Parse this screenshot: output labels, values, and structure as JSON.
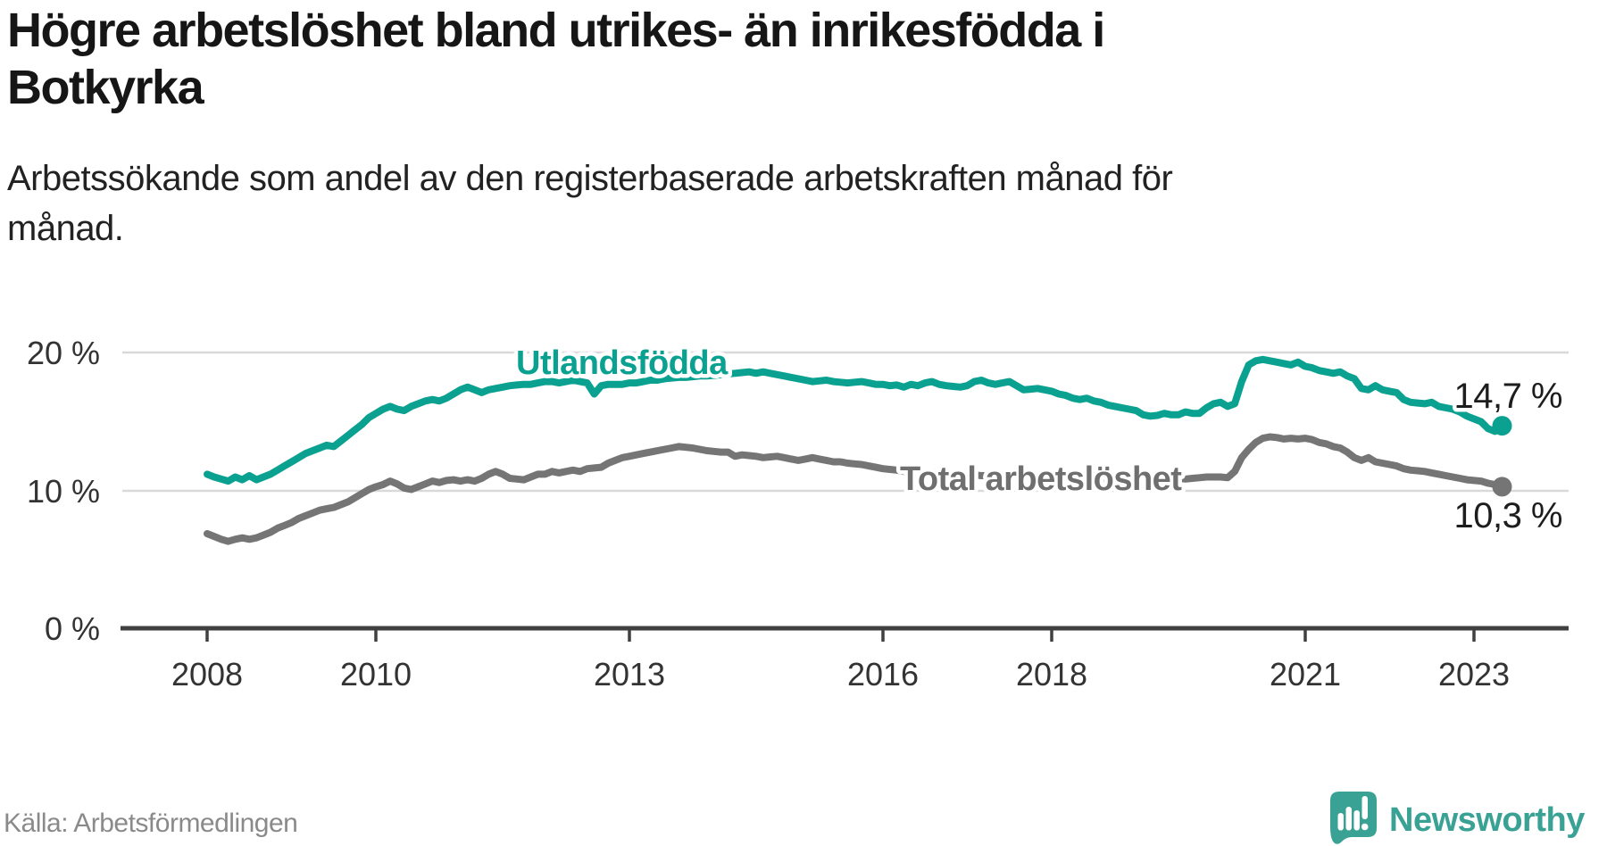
{
  "title": {
    "line1": "Högre arbetslöshet bland utrikes- än inrikesfödda i",
    "line2": "Botkyrka"
  },
  "subtitle": {
    "line1": "Arbetssökande som andel av den registerbaserade arbetskraften månad för",
    "line2": "månad."
  },
  "source": "Källa: Arbetsförmedlingen",
  "brand": {
    "name": "Newsworthy"
  },
  "colors": {
    "accent_teal": "#0aa191",
    "line_gray": "#757575",
    "label_gray": "#6f6f6f",
    "logo_teal": "#3aa294",
    "grid": "#d9d9d9",
    "axis": "#404040",
    "text_dark": "#1d1d1d"
  },
  "chart_data": {
    "type": "line",
    "unit": "%",
    "frequency": "monthly",
    "x_start": "2008-01",
    "x_end": "2023-05",
    "grid": "horizontal",
    "ylim": [
      0,
      21.5
    ],
    "x_ticks": [
      "2008",
      "2010",
      "2013",
      "2016",
      "2018",
      "2021",
      "2023"
    ],
    "y_ticks": [
      "20 %",
      "10 %",
      "0 %"
    ],
    "series": [
      {
        "name": "Utlandsfödda",
        "color": "#0aa191",
        "end_value": 14.7,
        "end_label": "14,7 %",
        "values": [
          11.2,
          11.0,
          10.85,
          10.7,
          11.0,
          10.8,
          11.1,
          10.8,
          11.0,
          11.2,
          11.5,
          11.8,
          12.1,
          12.4,
          12.7,
          12.9,
          13.1,
          13.3,
          13.2,
          13.6,
          14.0,
          14.4,
          14.8,
          15.3,
          15.6,
          15.9,
          16.1,
          15.9,
          15.8,
          16.1,
          16.3,
          16.5,
          16.6,
          16.5,
          16.7,
          17.0,
          17.3,
          17.5,
          17.3,
          17.1,
          17.3,
          17.4,
          17.5,
          17.6,
          17.65,
          17.7,
          17.7,
          17.8,
          17.9,
          17.9,
          17.8,
          17.9,
          18.0,
          17.9,
          17.8,
          17.0,
          17.6,
          17.7,
          17.7,
          17.7,
          17.8,
          17.8,
          17.9,
          18.0,
          18.0,
          18.1,
          18.15,
          18.2,
          18.2,
          18.25,
          18.3,
          18.3,
          18.35,
          18.4,
          18.45,
          18.5,
          18.55,
          18.6,
          18.5,
          18.6,
          18.5,
          18.4,
          18.3,
          18.2,
          18.1,
          18.0,
          17.9,
          17.95,
          18.0,
          17.9,
          17.85,
          17.8,
          17.85,
          17.9,
          17.8,
          17.7,
          17.7,
          17.6,
          17.65,
          17.5,
          17.7,
          17.6,
          17.8,
          17.9,
          17.7,
          17.6,
          17.55,
          17.5,
          17.6,
          17.9,
          18.0,
          17.8,
          17.7,
          17.8,
          17.9,
          17.6,
          17.3,
          17.35,
          17.4,
          17.3,
          17.2,
          17.0,
          16.9,
          16.7,
          16.6,
          16.7,
          16.5,
          16.4,
          16.2,
          16.1,
          16.0,
          15.9,
          15.8,
          15.5,
          15.4,
          15.45,
          15.6,
          15.5,
          15.5,
          15.7,
          15.6,
          15.6,
          16.0,
          16.3,
          16.4,
          16.1,
          16.3,
          17.9,
          19.1,
          19.4,
          19.5,
          19.4,
          19.3,
          19.2,
          19.1,
          19.3,
          19.0,
          18.9,
          18.7,
          18.6,
          18.5,
          18.6,
          18.3,
          18.1,
          17.4,
          17.3,
          17.6,
          17.3,
          17.2,
          17.1,
          16.6,
          16.4,
          16.35,
          16.3,
          16.4,
          16.1,
          16.0,
          15.9,
          15.7,
          15.4,
          15.2,
          15.0,
          14.5,
          14.3,
          14.7
        ]
      },
      {
        "name": "Total arbetslöshet",
        "color": "#757575",
        "end_value": 10.3,
        "end_label": "10,3 %",
        "values": [
          6.9,
          6.7,
          6.5,
          6.35,
          6.5,
          6.6,
          6.5,
          6.6,
          6.8,
          7.0,
          7.3,
          7.5,
          7.7,
          8.0,
          8.2,
          8.4,
          8.6,
          8.7,
          8.8,
          9.0,
          9.2,
          9.5,
          9.8,
          10.1,
          10.3,
          10.45,
          10.7,
          10.5,
          10.2,
          10.1,
          10.3,
          10.5,
          10.7,
          10.6,
          10.75,
          10.8,
          10.7,
          10.8,
          10.7,
          10.9,
          11.2,
          11.4,
          11.2,
          10.9,
          10.85,
          10.8,
          11.0,
          11.2,
          11.2,
          11.4,
          11.3,
          11.4,
          11.5,
          11.4,
          11.6,
          11.65,
          11.7,
          12.0,
          12.2,
          12.4,
          12.5,
          12.6,
          12.7,
          12.8,
          12.9,
          13.0,
          13.1,
          13.2,
          13.15,
          13.1,
          13.0,
          12.9,
          12.85,
          12.8,
          12.8,
          12.5,
          12.6,
          12.55,
          12.5,
          12.4,
          12.45,
          12.5,
          12.4,
          12.3,
          12.2,
          12.3,
          12.4,
          12.3,
          12.2,
          12.1,
          12.1,
          12.0,
          11.95,
          11.9,
          11.8,
          11.7,
          11.6,
          11.55,
          11.5,
          11.4,
          11.45,
          11.4,
          11.35,
          11.3,
          11.3,
          11.25,
          11.2,
          11.2,
          11.2,
          11.15,
          11.1,
          11.1,
          11.05,
          11.1,
          11.05,
          11.0,
          11.0,
          10.95,
          11.0,
          10.95,
          10.9,
          10.9,
          10.85,
          10.8,
          10.8,
          10.85,
          10.8,
          10.75,
          10.7,
          10.7,
          10.75,
          10.8,
          10.8,
          10.85,
          10.9,
          10.85,
          10.9,
          10.95,
          10.9,
          10.85,
          10.9,
          10.95,
          11.0,
          11.0,
          11.0,
          10.95,
          11.4,
          12.4,
          13.0,
          13.5,
          13.8,
          13.9,
          13.85,
          13.75,
          13.8,
          13.75,
          13.8,
          13.7,
          13.5,
          13.4,
          13.2,
          13.1,
          12.8,
          12.4,
          12.2,
          12.4,
          12.1,
          12.0,
          11.9,
          11.8,
          11.6,
          11.5,
          11.45,
          11.4,
          11.3,
          11.2,
          11.1,
          11.0,
          10.9,
          10.8,
          10.75,
          10.7,
          10.55,
          10.45,
          10.3
        ]
      }
    ]
  }
}
